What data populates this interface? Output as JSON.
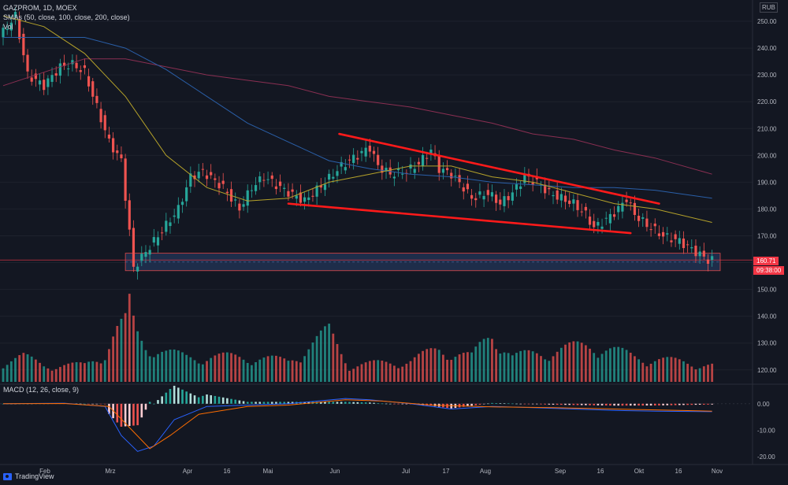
{
  "header": {
    "symbol_line": "GAZPROM, 1D, MOEX",
    "sma_line": "SMAs (50, close, 100, close, 200, close)",
    "vol_line": "Vol",
    "currency": "RUB"
  },
  "macd": {
    "label": "MACD (12, 26, close, 9)"
  },
  "footer": {
    "brand": "TradingView"
  },
  "last_price": {
    "value": "160.71",
    "countdown": "09:38:00"
  },
  "colors": {
    "up": "#26a69a",
    "down": "#ef5350",
    "sma50": "#b5a22a",
    "sma100": "#2a5fa8",
    "sma200": "#8a2f52",
    "trendline": "#ff1a1a",
    "macd": "#2962ff",
    "signal": "#ff6d00",
    "support_zone": "#1e2d4a"
  },
  "chart_data": {
    "type": "candlestick",
    "price_axis": {
      "ylim": [
        117,
        255
      ],
      "ticks": [
        "250.00",
        "240.00",
        "230.00",
        "220.00",
        "210.00",
        "200.00",
        "190.00",
        "180.00",
        "170.00",
        "160.00",
        "150.00",
        "140.00",
        "130.00",
        "120.00"
      ]
    },
    "macd_axis": {
      "ylim": [
        -20,
        5
      ],
      "ticks": [
        "0.00",
        "-10.00",
        "-20.00"
      ]
    },
    "x_ticks": [
      "Feb",
      "Mrz",
      "Apr",
      "16",
      "Mai",
      "Jun",
      "Jul",
      "17",
      "Aug",
      "Sep",
      "16",
      "Okt",
      "16",
      "Nov"
    ],
    "price_path": [
      [
        0,
        244
      ],
      [
        8,
        252
      ],
      [
        14,
        230
      ],
      [
        22,
        226
      ],
      [
        30,
        233
      ],
      [
        36,
        234
      ],
      [
        42,
        231
      ],
      [
        48,
        218
      ],
      [
        54,
        205
      ],
      [
        60,
        198
      ],
      [
        66,
        158
      ],
      [
        72,
        164
      ],
      [
        80,
        172
      ],
      [
        88,
        180
      ],
      [
        94,
        192
      ],
      [
        100,
        194
      ],
      [
        110,
        188
      ],
      [
        118,
        180
      ],
      [
        124,
        188
      ],
      [
        130,
        192
      ],
      [
        140,
        187
      ],
      [
        150,
        183
      ],
      [
        160,
        190
      ],
      [
        168,
        196
      ],
      [
        176,
        200
      ],
      [
        182,
        203
      ],
      [
        186,
        196
      ],
      [
        192,
        193
      ],
      [
        200,
        194
      ],
      [
        206,
        197
      ],
      [
        212,
        202
      ],
      [
        216,
        195
      ],
      [
        222,
        193
      ],
      [
        228,
        188
      ],
      [
        232,
        184
      ],
      [
        240,
        186
      ],
      [
        246,
        182
      ],
      [
        252,
        186
      ],
      [
        258,
        192
      ],
      [
        264,
        190
      ],
      [
        270,
        186
      ],
      [
        276,
        184
      ],
      [
        282,
        182
      ],
      [
        288,
        178
      ],
      [
        292,
        173
      ],
      [
        298,
        176
      ],
      [
        304,
        180
      ],
      [
        308,
        184
      ],
      [
        312,
        178
      ],
      [
        318,
        174
      ],
      [
        326,
        170
      ],
      [
        334,
        168
      ],
      [
        342,
        164
      ],
      [
        348,
        161
      ]
    ],
    "sma50_path": [
      [
        0,
        252
      ],
      [
        20,
        248
      ],
      [
        40,
        238
      ],
      [
        60,
        222
      ],
      [
        80,
        200
      ],
      [
        100,
        188
      ],
      [
        120,
        183
      ],
      [
        140,
        184
      ],
      [
        160,
        190
      ],
      [
        180,
        193
      ],
      [
        200,
        196
      ],
      [
        220,
        196
      ],
      [
        240,
        192
      ],
      [
        260,
        190
      ],
      [
        280,
        186
      ],
      [
        300,
        182
      ],
      [
        320,
        180
      ],
      [
        348,
        175
      ]
    ],
    "sma100_path": [
      [
        0,
        244
      ],
      [
        40,
        244
      ],
      [
        60,
        240
      ],
      [
        80,
        232
      ],
      [
        100,
        222
      ],
      [
        120,
        212
      ],
      [
        140,
        205
      ],
      [
        160,
        198
      ],
      [
        180,
        195
      ],
      [
        200,
        193
      ],
      [
        220,
        192
      ],
      [
        240,
        190
      ],
      [
        260,
        189
      ],
      [
        280,
        188
      ],
      [
        300,
        188
      ],
      [
        320,
        187
      ],
      [
        348,
        184
      ]
    ],
    "sma200_path": [
      [
        0,
        226
      ],
      [
        40,
        236
      ],
      [
        60,
        236
      ],
      [
        80,
        233
      ],
      [
        100,
        230
      ],
      [
        120,
        228
      ],
      [
        140,
        226
      ],
      [
        160,
        222
      ],
      [
        180,
        220
      ],
      [
        200,
        218
      ],
      [
        220,
        215
      ],
      [
        240,
        212
      ],
      [
        260,
        208
      ],
      [
        280,
        206
      ],
      [
        300,
        202
      ],
      [
        320,
        199
      ],
      [
        348,
        193
      ]
    ],
    "trendline_upper": [
      [
        165,
        208
      ],
      [
        322,
        182
      ]
    ],
    "trendline_lower": [
      [
        140,
        182
      ],
      [
        308,
        171
      ]
    ],
    "support_zone": {
      "x": [
        60,
        352
      ],
      "y": [
        157,
        163.5
      ]
    },
    "volume_path": [
      [
        0,
        0.25
      ],
      [
        10,
        0.3
      ],
      [
        20,
        0.2
      ],
      [
        40,
        0.2
      ],
      [
        50,
        0.35
      ],
      [
        55,
        0.6
      ],
      [
        60,
        0.7
      ],
      [
        62,
        0.9
      ],
      [
        65,
        0.6
      ],
      [
        70,
        0.45
      ],
      [
        80,
        0.35
      ],
      [
        90,
        0.3
      ],
      [
        120,
        0.3
      ],
      [
        140,
        0.25
      ],
      [
        160,
        0.6
      ],
      [
        170,
        0.2
      ],
      [
        200,
        0.25
      ],
      [
        214,
        0.4
      ],
      [
        230,
        0.3
      ],
      [
        240,
        0.6
      ],
      [
        250,
        0.3
      ],
      [
        290,
        0.45
      ],
      [
        310,
        0.3
      ],
      [
        348,
        0.2
      ]
    ],
    "macd_path": [
      [
        0,
        0
      ],
      [
        30,
        0.2
      ],
      [
        50,
        -1
      ],
      [
        58,
        -12
      ],
      [
        66,
        -18
      ],
      [
        74,
        -16
      ],
      [
        84,
        -6
      ],
      [
        100,
        -1
      ],
      [
        120,
        -0.5
      ],
      [
        140,
        0
      ],
      [
        168,
        2
      ],
      [
        180,
        1.5
      ],
      [
        200,
        0
      ],
      [
        220,
        -2
      ],
      [
        240,
        -1
      ],
      [
        260,
        -1.5
      ],
      [
        280,
        -2
      ],
      [
        300,
        -2.5
      ],
      [
        320,
        -2.8
      ],
      [
        348,
        -3
      ]
    ],
    "signal_path": [
      [
        0,
        0
      ],
      [
        30,
        0.1
      ],
      [
        52,
        -1
      ],
      [
        62,
        -9
      ],
      [
        72,
        -17
      ],
      [
        82,
        -12
      ],
      [
        96,
        -4
      ],
      [
        120,
        -1
      ],
      [
        140,
        -0.5
      ],
      [
        168,
        1.5
      ],
      [
        186,
        1
      ],
      [
        210,
        -0.5
      ],
      [
        240,
        -1.2
      ],
      [
        270,
        -1.5
      ],
      [
        300,
        -2
      ],
      [
        348,
        -2.8
      ]
    ]
  }
}
